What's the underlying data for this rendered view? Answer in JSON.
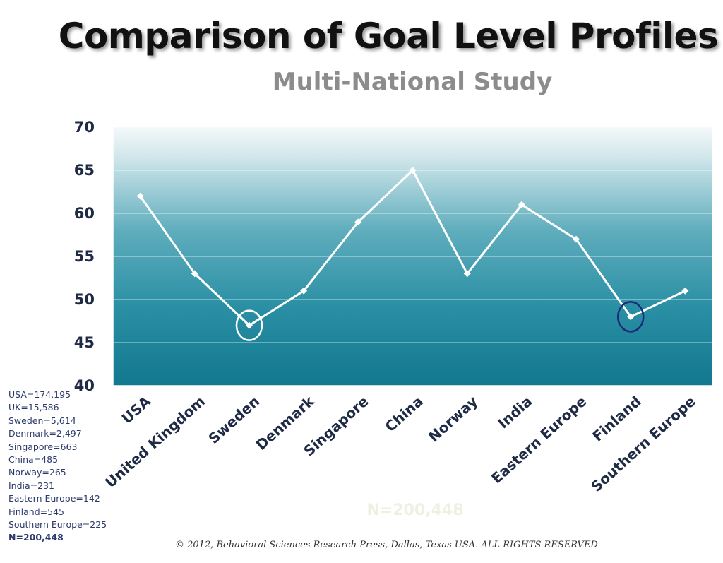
{
  "chart_data": {
    "type": "line",
    "title": "Comparison of Goal Level Profiles",
    "subtitle": "Multi-National Study",
    "xlabel": "",
    "ylabel": "",
    "ylim": [
      40,
      70
    ],
    "yticks": [
      40,
      45,
      50,
      55,
      60,
      65,
      70
    ],
    "grid": true,
    "categories": [
      "USA",
      "United Kingdom",
      "Sweden",
      "Denmark",
      "Singapore",
      "China",
      "Norway",
      "India",
      "Eastern Europe",
      "Finland",
      "Southern Europe"
    ],
    "series": [
      {
        "values": [
          62,
          53,
          47,
          51,
          59,
          65,
          53,
          61,
          57,
          48,
          51
        ]
      }
    ],
    "highlights": [
      {
        "category": "Sweden",
        "color": "#ffffff"
      },
      {
        "category": "Finland",
        "color": "#1a2a78"
      }
    ],
    "annotation": "N=200,448",
    "colors": {
      "line": "#ffffff",
      "background_top": "#f4f9fa",
      "background_bottom": "#12788f",
      "axis": "#ffffff"
    }
  },
  "sample_sizes": [
    "USA=174,195",
    "UK=15,586",
    "Sweden=5,614",
    "Denmark=2,497",
    "Singapore=663",
    "China=485",
    "Norway=265",
    "India=231",
    "Eastern Europe=142",
    "Finland=545",
    "Southern Europe=225"
  ],
  "sample_total": "N=200,448",
  "copyright": "© 2012, Behavioral Sciences Research Press, Dallas, Texas USA. ALL RIGHTS RESERVED"
}
